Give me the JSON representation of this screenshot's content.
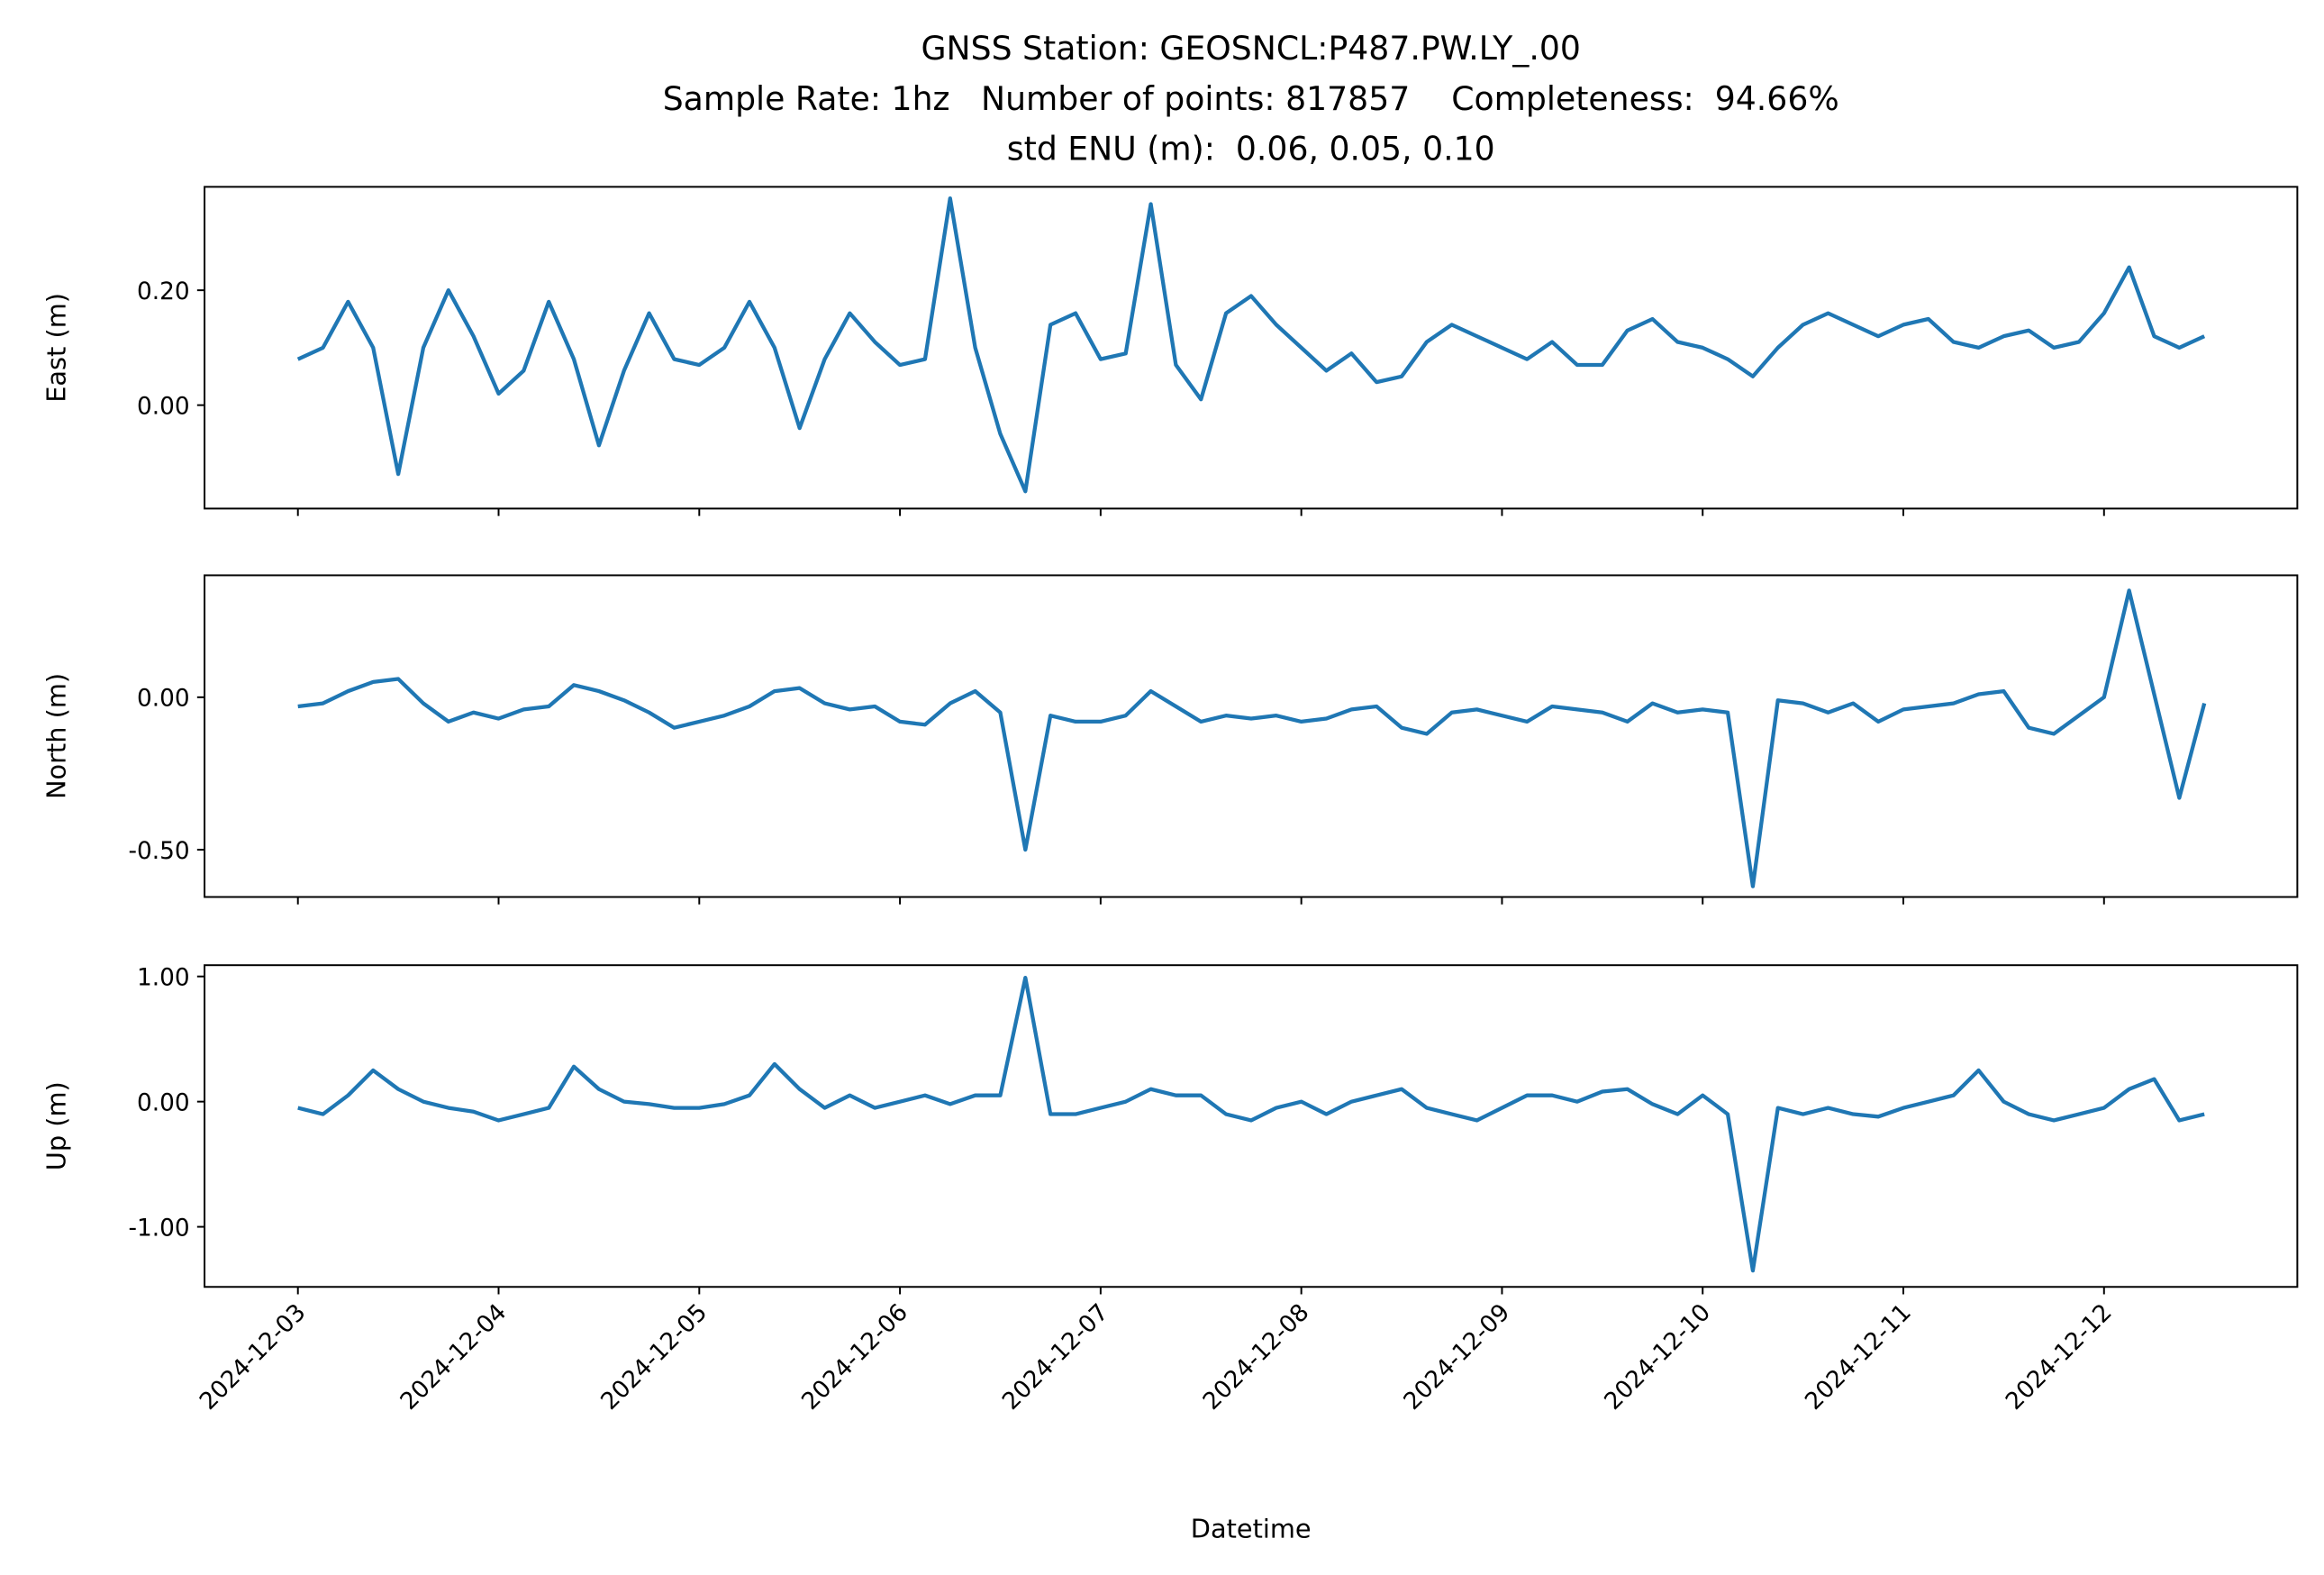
{
  "chart_data": {
    "type": "line",
    "title": "GNSS Station: GEOSNCL:P487.PW.LY_.00",
    "subtitle": [
      "Sample Rate: 1hz   Number of points: 817857    Completeness:  94.66%",
      "std ENU (m):  0.06, 0.05, 0.10"
    ],
    "xlabel": "Datetime",
    "xlim": [
      "2024-12-02T12:50",
      "2024-12-12T23:07"
    ],
    "xticks": [
      "2024-12-03",
      "2024-12-04",
      "2024-12-05",
      "2024-12-06",
      "2024-12-07",
      "2024-12-08",
      "2024-12-09",
      "2024-12-10",
      "2024-12-11",
      "2024-12-12"
    ],
    "x": [
      "2024-12-03T00:00",
      "2024-12-03T03:00",
      "2024-12-03T06:00",
      "2024-12-03T09:00",
      "2024-12-03T12:00",
      "2024-12-03T15:00",
      "2024-12-03T18:00",
      "2024-12-03T21:00",
      "2024-12-04T00:00",
      "2024-12-04T03:00",
      "2024-12-04T06:00",
      "2024-12-04T09:00",
      "2024-12-04T12:00",
      "2024-12-04T15:00",
      "2024-12-04T18:00",
      "2024-12-04T21:00",
      "2024-12-05T00:00",
      "2024-12-05T03:00",
      "2024-12-05T06:00",
      "2024-12-05T09:00",
      "2024-12-05T12:00",
      "2024-12-05T15:00",
      "2024-12-05T18:00",
      "2024-12-05T21:00",
      "2024-12-06T00:00",
      "2024-12-06T03:00",
      "2024-12-06T06:00",
      "2024-12-06T09:00",
      "2024-12-06T12:00",
      "2024-12-06T15:00",
      "2024-12-06T18:00",
      "2024-12-06T21:00",
      "2024-12-07T00:00",
      "2024-12-07T03:00",
      "2024-12-07T06:00",
      "2024-12-07T09:00",
      "2024-12-07T12:00",
      "2024-12-07T15:00",
      "2024-12-07T18:00",
      "2024-12-07T21:00",
      "2024-12-08T00:00",
      "2024-12-08T03:00",
      "2024-12-08T06:00",
      "2024-12-08T09:00",
      "2024-12-08T12:00",
      "2024-12-08T15:00",
      "2024-12-08T18:00",
      "2024-12-08T21:00",
      "2024-12-09T00:00",
      "2024-12-09T03:00",
      "2024-12-09T06:00",
      "2024-12-09T09:00",
      "2024-12-09T12:00",
      "2024-12-09T15:00",
      "2024-12-09T18:00",
      "2024-12-09T21:00",
      "2024-12-10T00:00",
      "2024-12-10T03:00",
      "2024-12-10T06:00",
      "2024-12-10T09:00",
      "2024-12-10T12:00",
      "2024-12-10T15:00",
      "2024-12-10T18:00",
      "2024-12-10T21:00",
      "2024-12-11T00:00",
      "2024-12-11T03:00",
      "2024-12-11T06:00",
      "2024-12-11T09:00",
      "2024-12-11T12:00",
      "2024-12-11T15:00",
      "2024-12-11T18:00",
      "2024-12-11T21:00",
      "2024-12-12T00:00",
      "2024-12-12T03:00",
      "2024-12-12T06:00",
      "2024-12-12T09:00",
      "2024-12-12T12:00"
    ],
    "panels": [
      {
        "ylabel": "East (m)",
        "ylim": [
          -0.18,
          0.38
        ],
        "yticks": [
          {
            "value": 0,
            "label": "0.00"
          },
          {
            "value": 0.2,
            "label": "0.20"
          }
        ],
        "series": [
          {
            "color": "#1f77b4",
            "values": [
              0.08,
              0.1,
              0.18,
              0.1,
              -0.12,
              0.1,
              0.2,
              0.12,
              0.02,
              0.06,
              0.18,
              0.08,
              -0.07,
              0.06,
              0.16,
              0.08,
              0.07,
              0.1,
              0.18,
              0.1,
              -0.04,
              0.08,
              0.16,
              0.11,
              0.07,
              0.08,
              0.36,
              0.1,
              -0.05,
              -0.15,
              0.14,
              0.16,
              0.08,
              0.09,
              0.35,
              0.07,
              0.01,
              0.16,
              0.19,
              0.14,
              0.1,
              0.06,
              0.09,
              0.04,
              0.05,
              0.11,
              0.14,
              0.12,
              0.1,
              0.08,
              0.11,
              0.07,
              0.07,
              0.13,
              0.15,
              0.11,
              0.1,
              0.08,
              0.05,
              0.1,
              0.14,
              0.16,
              0.14,
              0.12,
              0.14,
              0.15,
              0.11,
              0.1,
              0.12,
              0.13,
              0.1,
              0.11,
              0.16,
              0.24,
              0.12,
              0.1,
              0.12
            ]
          }
        ]
      },
      {
        "ylabel": "North (m)",
        "ylim": [
          -0.655,
          0.4
        ],
        "yticks": [
          {
            "value": -0.5,
            "label": "-0.50"
          },
          {
            "value": 0,
            "label": "0.00"
          }
        ],
        "series": [
          {
            "color": "#1f77b4",
            "values": [
              -0.03,
              -0.02,
              0.02,
              0.05,
              0.06,
              -0.02,
              -0.08,
              -0.05,
              -0.07,
              -0.04,
              -0.03,
              0.04,
              0.02,
              -0.01,
              -0.05,
              -0.1,
              -0.08,
              -0.06,
              -0.03,
              0.02,
              0.03,
              -0.02,
              -0.04,
              -0.03,
              -0.08,
              -0.09,
              -0.02,
              0.02,
              -0.05,
              -0.5,
              -0.06,
              -0.08,
              -0.08,
              -0.06,
              0.02,
              -0.03,
              -0.08,
              -0.06,
              -0.07,
              -0.06,
              -0.08,
              -0.07,
              -0.04,
              -0.03,
              -0.1,
              -0.12,
              -0.05,
              -0.04,
              -0.06,
              -0.08,
              -0.03,
              -0.04,
              -0.05,
              -0.08,
              -0.02,
              -0.05,
              -0.04,
              -0.05,
              -0.62,
              -0.01,
              -0.02,
              -0.05,
              -0.02,
              -0.08,
              -0.04,
              -0.03,
              -0.02,
              0.01,
              0.02,
              -0.1,
              -0.12,
              -0.06,
              0.0,
              0.35,
              0.01,
              -0.33,
              -0.02
            ]
          }
        ]
      },
      {
        "ylabel": "Up (m)",
        "ylim": [
          -1.48,
          1.09
        ],
        "yticks": [
          {
            "value": -1,
            "label": "-1.00"
          },
          {
            "value": 0,
            "label": "0.00"
          },
          {
            "value": 1,
            "label": "1.00"
          }
        ],
        "series": [
          {
            "color": "#1f77b4",
            "values": [
              -0.05,
              -0.1,
              0.05,
              0.25,
              0.1,
              0.0,
              -0.05,
              -0.08,
              -0.15,
              -0.1,
              -0.05,
              0.28,
              0.1,
              0.0,
              -0.02,
              -0.05,
              -0.05,
              -0.02,
              0.05,
              0.3,
              0.1,
              -0.05,
              0.05,
              -0.05,
              0.0,
              0.05,
              -0.02,
              0.05,
              0.05,
              0.99,
              -0.1,
              -0.1,
              -0.05,
              0.0,
              0.1,
              0.05,
              0.05,
              -0.1,
              -0.15,
              -0.05,
              0.0,
              -0.1,
              0.0,
              0.05,
              0.1,
              -0.05,
              -0.1,
              -0.15,
              -0.05,
              0.05,
              0.05,
              0.0,
              0.08,
              0.1,
              -0.02,
              -0.1,
              0.05,
              -0.1,
              -1.35,
              -0.05,
              -0.1,
              -0.05,
              -0.1,
              -0.12,
              -0.05,
              0.0,
              0.05,
              0.25,
              0.0,
              -0.1,
              -0.15,
              -0.1,
              -0.05,
              0.1,
              0.18,
              -0.15,
              -0.1
            ]
          }
        ]
      }
    ]
  }
}
